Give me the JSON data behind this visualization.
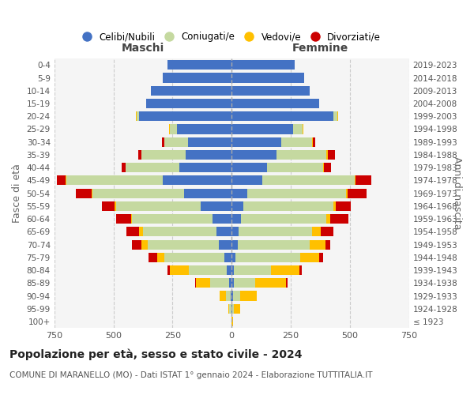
{
  "age_groups": [
    "100+",
    "95-99",
    "90-94",
    "85-89",
    "80-84",
    "75-79",
    "70-74",
    "65-69",
    "60-64",
    "55-59",
    "50-54",
    "45-49",
    "40-44",
    "35-39",
    "30-34",
    "25-29",
    "20-24",
    "15-19",
    "10-14",
    "5-9",
    "0-4"
  ],
  "birth_years": [
    "≤ 1923",
    "1924-1928",
    "1929-1933",
    "1934-1938",
    "1939-1943",
    "1944-1948",
    "1949-1953",
    "1954-1958",
    "1959-1963",
    "1964-1968",
    "1969-1973",
    "1974-1978",
    "1979-1983",
    "1984-1988",
    "1989-1993",
    "1994-1998",
    "1999-2003",
    "2004-2008",
    "2009-2013",
    "2014-2018",
    "2019-2023"
  ],
  "colors": {
    "celibi": "#4472c4",
    "coniugati": "#c5d9a0",
    "vedovi": "#ffc000",
    "divorziati": "#cc0000"
  },
  "maschi": {
    "celibi": [
      0,
      2,
      5,
      10,
      20,
      30,
      55,
      65,
      80,
      130,
      200,
      290,
      220,
      195,
      185,
      230,
      390,
      360,
      340,
      290,
      270
    ],
    "coniugati": [
      0,
      8,
      20,
      80,
      160,
      255,
      300,
      310,
      340,
      360,
      390,
      410,
      230,
      185,
      100,
      30,
      10,
      0,
      0,
      0,
      0
    ],
    "vedovi": [
      0,
      5,
      25,
      60,
      80,
      30,
      25,
      15,
      5,
      5,
      3,
      3,
      0,
      0,
      0,
      5,
      5,
      0,
      0,
      0,
      0
    ],
    "divorziati": [
      0,
      0,
      0,
      5,
      10,
      35,
      40,
      55,
      65,
      55,
      65,
      35,
      15,
      15,
      10,
      0,
      0,
      0,
      0,
      0,
      0
    ]
  },
  "femmine": {
    "celibi": [
      0,
      2,
      5,
      10,
      10,
      15,
      25,
      30,
      40,
      50,
      65,
      130,
      150,
      190,
      210,
      260,
      430,
      370,
      330,
      305,
      265
    ],
    "coniugati": [
      0,
      8,
      30,
      90,
      155,
      275,
      305,
      310,
      360,
      380,
      420,
      390,
      235,
      210,
      130,
      40,
      15,
      0,
      0,
      0,
      0
    ],
    "vedovi": [
      5,
      25,
      70,
      130,
      120,
      80,
      65,
      35,
      15,
      10,
      5,
      5,
      5,
      5,
      3,
      3,
      5,
      0,
      0,
      0,
      0
    ],
    "divorziati": [
      0,
      0,
      0,
      5,
      10,
      15,
      20,
      55,
      80,
      65,
      80,
      65,
      30,
      30,
      10,
      0,
      0,
      0,
      0,
      0,
      0
    ]
  },
  "title": "Popolazione per età, sesso e stato civile - 2024",
  "subtitle": "COMUNE DI MARANELLO (MO) - Dati ISTAT 1° gennaio 2024 - Elaborazione TUTTITALIA.IT",
  "xlabel_left": "Maschi",
  "xlabel_right": "Femmine",
  "ylabel_left": "Fasce di età",
  "ylabel_right": "Anni di nascita",
  "xlim": 750,
  "bg_color": "#ffffff",
  "grid_color": "#cccccc",
  "legend_labels": [
    "Celibi/Nubili",
    "Coniugati/e",
    "Vedovi/e",
    "Divorziati/e"
  ]
}
